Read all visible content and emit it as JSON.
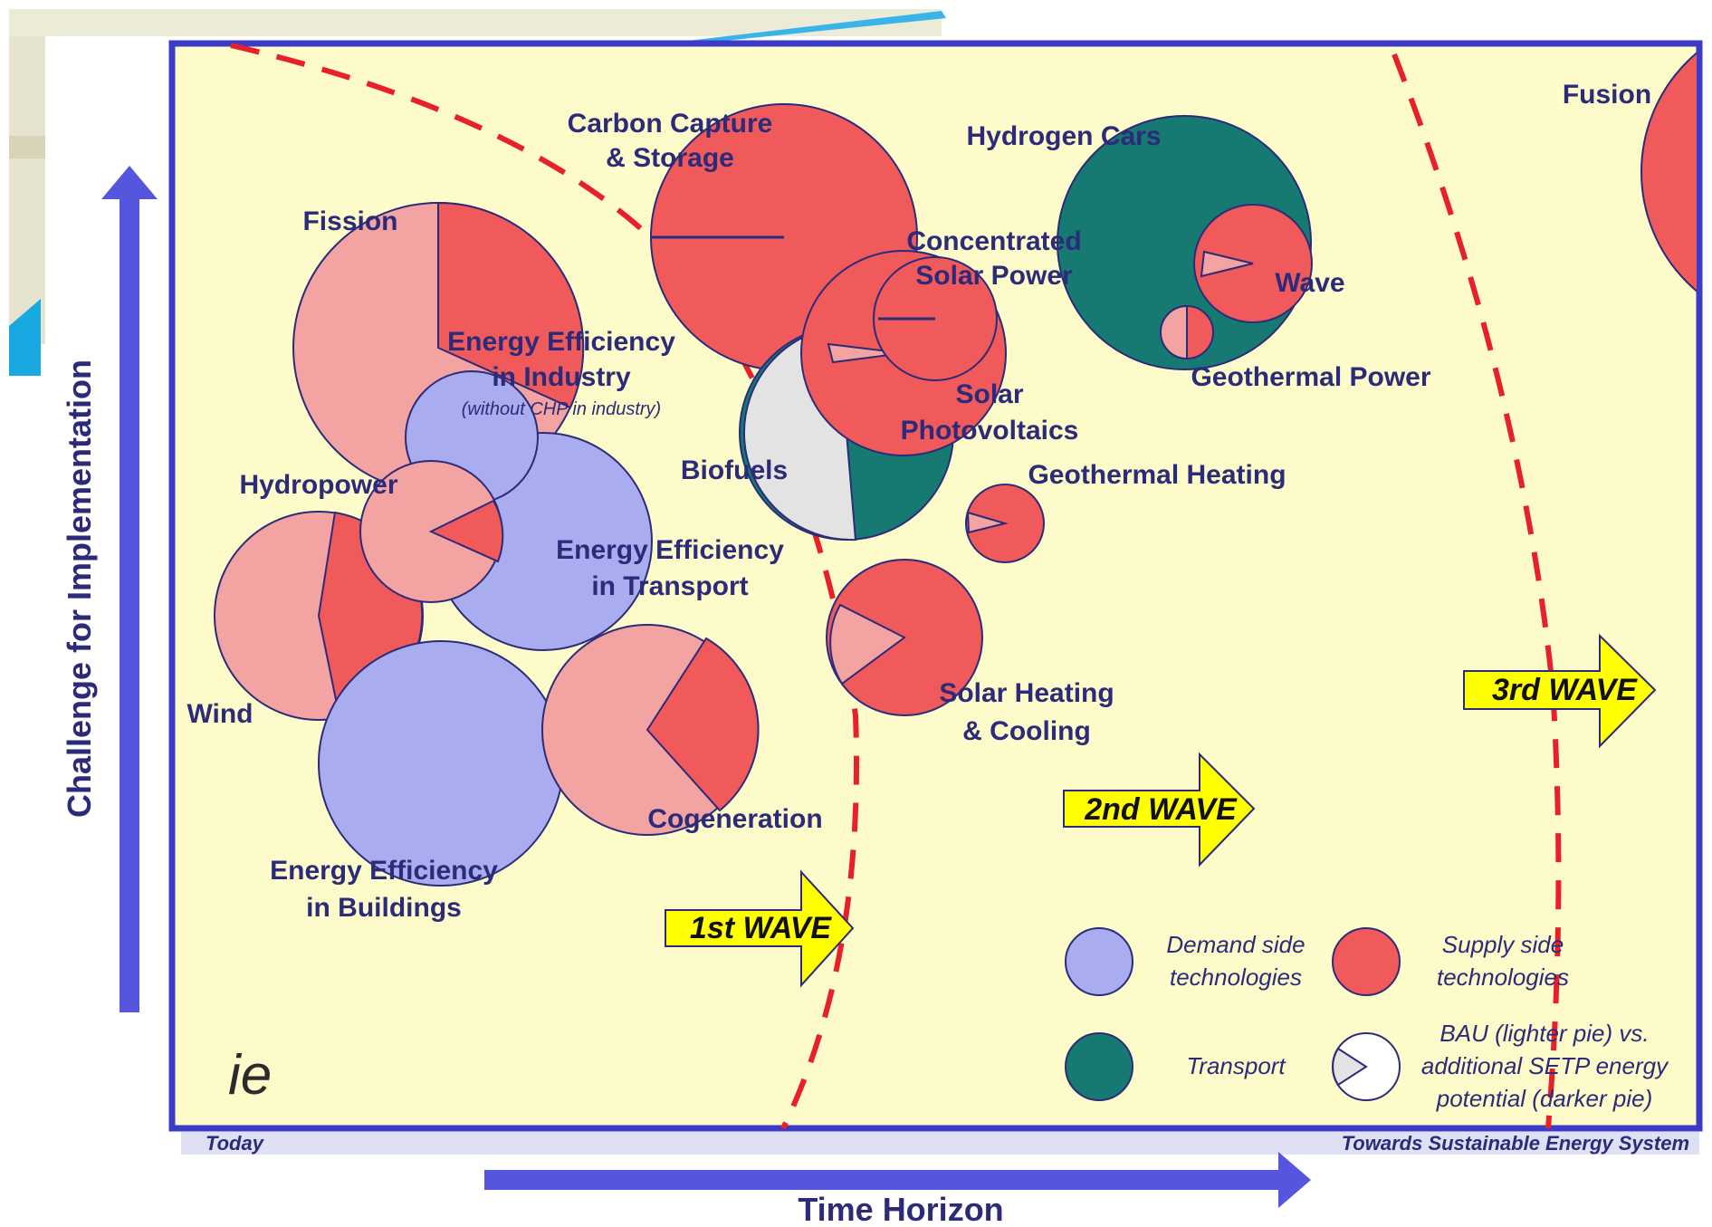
{
  "axes": {
    "y_label": "Challenge for Implementation",
    "x_label": "Time Horizon",
    "x_start": "Today",
    "x_end": "Towards Sustainable Energy System"
  },
  "waves": {
    "first": "1st WAVE",
    "second": "2nd WAVE",
    "third": "3rd WAVE"
  },
  "technologies": [
    {
      "key": "ccs",
      "label_lines": [
        "Carbon Capture",
        "& Storage"
      ],
      "category": "supply"
    },
    {
      "key": "hydrogen_cars",
      "label_lines": [
        "Hydrogen Cars"
      ],
      "category": "transport"
    },
    {
      "key": "fusion",
      "label_lines": [
        "Fusion"
      ],
      "category": "supply"
    },
    {
      "key": "fission",
      "label_lines": [
        "Fission"
      ],
      "category": "supply"
    },
    {
      "key": "csp",
      "label_lines": [
        "Concentrated",
        "Solar Power"
      ],
      "category": "supply"
    },
    {
      "key": "wave_power",
      "label_lines": [
        "Wave"
      ],
      "category": "supply"
    },
    {
      "key": "ee_industry",
      "label_lines": [
        "Energy Efficiency",
        "in Industry"
      ],
      "note": "(without CHP in industry)",
      "category": "demand"
    },
    {
      "key": "geothermal_power",
      "label_lines": [
        "Geothermal Power"
      ],
      "category": "supply"
    },
    {
      "key": "solar_pv",
      "label_lines": [
        "Solar",
        "Photovoltaics"
      ],
      "category": "supply"
    },
    {
      "key": "hydropower",
      "label_lines": [
        "Hydropower"
      ],
      "category": "supply"
    },
    {
      "key": "biofuels",
      "label_lines": [
        "Biofuels"
      ],
      "category": "transport"
    },
    {
      "key": "geothermal_heating",
      "label_lines": [
        "Geothermal Heating"
      ],
      "category": "supply"
    },
    {
      "key": "ee_transport",
      "label_lines": [
        "Energy Efficiency",
        "in Transport"
      ],
      "category": "demand"
    },
    {
      "key": "solar_heating",
      "label_lines": [
        "Solar Heating",
        "& Cooling"
      ],
      "category": "supply"
    },
    {
      "key": "wind",
      "label_lines": [
        "Wind"
      ],
      "category": "supply"
    },
    {
      "key": "cogeneration",
      "label_lines": [
        "Cogeneration"
      ],
      "category": "supply"
    },
    {
      "key": "ee_buildings",
      "label_lines": [
        "Energy Efficiency",
        "in Buildings"
      ],
      "category": "demand"
    }
  ],
  "legend": {
    "demand": "Demand side technologies",
    "supply": "Supply side technologies",
    "transport": "Transport",
    "bau": "BAU (lighter pie) vs. additional SETP energy potential (darker pie)"
  },
  "logo_text": "ie",
  "colors": {
    "background": "#fdfbc9",
    "frame": "#3b3bc8",
    "demand": "#a9acee",
    "supply": "#f05a5a",
    "supply_light": "#f4a3a3",
    "transport": "#177a72",
    "bau_grey": "#e3e3e3",
    "arrow": "#5555dd",
    "wave_arrow": "#ffff00",
    "dashed_line": "#e8202a"
  }
}
